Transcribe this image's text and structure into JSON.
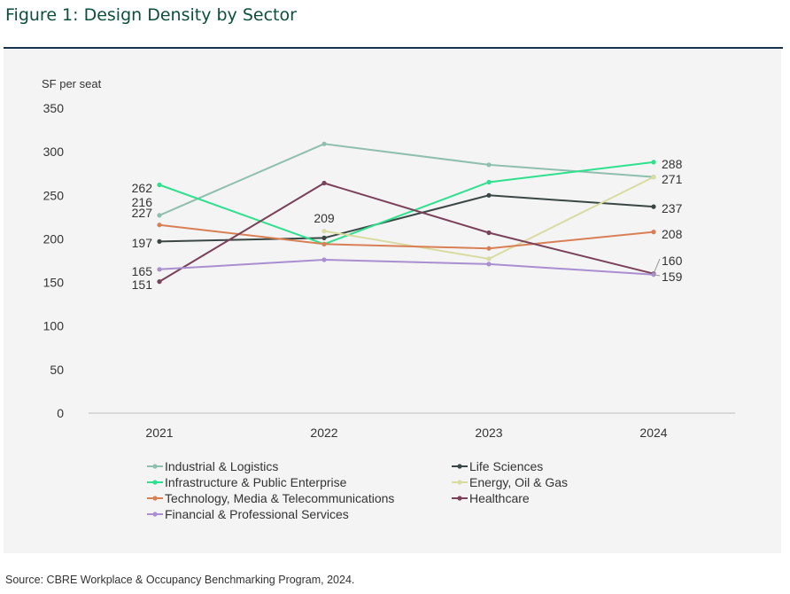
{
  "header": {
    "title": "Figure 1: Design Density by Sector"
  },
  "footer": {
    "source": "Source: CBRE Workplace & Occupancy Benchmarking Program, 2024."
  },
  "chart_data": {
    "type": "line",
    "title": "Figure 1: Design Density by Sector",
    "ylabel": "SF per seat",
    "xlabel": "",
    "x": [
      "2021",
      "2022",
      "2023",
      "2024"
    ],
    "ylim": [
      0,
      350
    ],
    "yticks": [
      0,
      50,
      100,
      150,
      200,
      250,
      300,
      350
    ],
    "grid": false,
    "legend": "bottom",
    "series": [
      {
        "name": "Industrial & Logistics",
        "color": "#8fbfae",
        "values": [
          227,
          309,
          285,
          271
        ],
        "labels": [
          "227",
          null,
          null,
          "271"
        ]
      },
      {
        "name": "Life Sciences",
        "color": "#3a4744",
        "values": [
          197,
          201,
          250,
          237
        ],
        "labels": [
          "197",
          null,
          null,
          "237"
        ]
      },
      {
        "name": "Infrastructure & Public Enterprise",
        "color": "#2fe08e",
        "values": [
          262,
          194,
          265,
          288
        ],
        "labels": [
          "262",
          null,
          null,
          "288"
        ]
      },
      {
        "name": "Energy, Oil & Gas",
        "color": "#d9dca0",
        "values": [
          null,
          209,
          177,
          271
        ],
        "labels": [
          null,
          "209",
          null,
          null
        ]
      },
      {
        "name": "Technology, Media & Telecommunications",
        "color": "#d97f55",
        "values": [
          216,
          194,
          189,
          208
        ],
        "labels": [
          "216",
          null,
          null,
          "208"
        ]
      },
      {
        "name": "Healthcare",
        "color": "#7a4159",
        "values": [
          151,
          264,
          207,
          160
        ],
        "labels": [
          "151",
          null,
          null,
          "160"
        ]
      },
      {
        "name": "Financial & Professional Services",
        "color": "#a98fcf",
        "values": [
          165,
          176,
          171,
          159
        ],
        "labels": [
          "165",
          null,
          null,
          "159"
        ]
      }
    ]
  }
}
